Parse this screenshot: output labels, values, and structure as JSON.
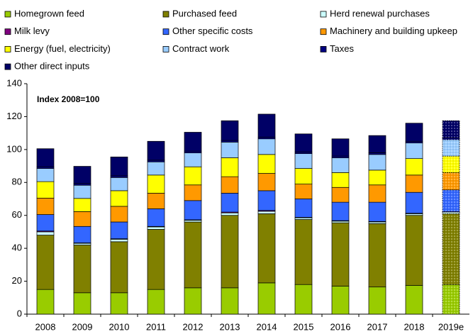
{
  "chart_data": {
    "type": "stacked_bar",
    "annotation": "Index 2008=100",
    "categories": [
      "2008",
      "2009",
      "2010",
      "2011",
      "2012",
      "2013",
      "2014",
      "2015",
      "2016",
      "2017",
      "2018",
      "2019e"
    ],
    "series": [
      {
        "name": "Homegrown feed",
        "color": "#99cc00",
        "values": [
          15,
          13,
          13,
          15,
          16,
          16,
          19,
          18,
          17,
          16.5,
          17.5,
          18
        ]
      },
      {
        "name": "Purchased feed",
        "color": "#808000",
        "values": [
          33,
          29,
          31,
          36.5,
          40,
          44,
          42,
          39.5,
          38.5,
          38.5,
          42.5,
          43
        ]
      },
      {
        "name": "Herd renewal purchases",
        "color": "#ccffff",
        "values": [
          2,
          1,
          1.5,
          1.5,
          1,
          1.5,
          1.5,
          1,
          1,
          1,
          1,
          1
        ]
      },
      {
        "name": "Milk levy",
        "color": "#800080",
        "values": [
          0.5,
          0.3,
          0.3,
          0.3,
          0.3,
          0.5,
          0.5,
          0.3,
          0.3,
          0.3,
          0.3,
          0.3
        ]
      },
      {
        "name": "Other specific costs",
        "color": "#3366ff",
        "values": [
          10,
          10,
          10.2,
          10.7,
          11.7,
          11.5,
          12,
          11.2,
          11.2,
          11.7,
          12.7,
          13.2
        ]
      },
      {
        "name": "Machinery and building upkeep",
        "color": "#ff9900",
        "values": [
          10,
          9,
          9.5,
          9.5,
          9.5,
          10,
          10.5,
          9,
          9,
          10.5,
          10.5,
          10.5
        ]
      },
      {
        "name": "Energy (fuel, electricity)",
        "color": "#ffff00",
        "values": [
          10,
          8,
          9.5,
          11,
          11,
          11.5,
          11.5,
          9.5,
          9,
          9,
          10,
          10
        ]
      },
      {
        "name": "Contract work",
        "color": "#99ccff",
        "values": [
          8,
          8,
          8,
          8,
          8.5,
          9.5,
          9.5,
          9,
          9,
          9.5,
          9.5,
          10
        ]
      },
      {
        "name": "Taxes",
        "color": "#000080",
        "values": [
          1,
          1,
          1,
          1,
          1,
          1,
          1,
          1,
          1,
          1,
          1,
          1
        ]
      },
      {
        "name": "Other direct inputs",
        "color": "#000066",
        "values": [
          11,
          10.5,
          11.5,
          11.5,
          11.5,
          12,
          14,
          11,
          10.5,
          10.5,
          11,
          10.5
        ]
      }
    ],
    "ylim": [
      0,
      140
    ],
    "yticks": [
      0,
      20,
      40,
      60,
      80,
      100,
      120,
      140
    ],
    "projection_pattern_last": true,
    "grid": false
  }
}
